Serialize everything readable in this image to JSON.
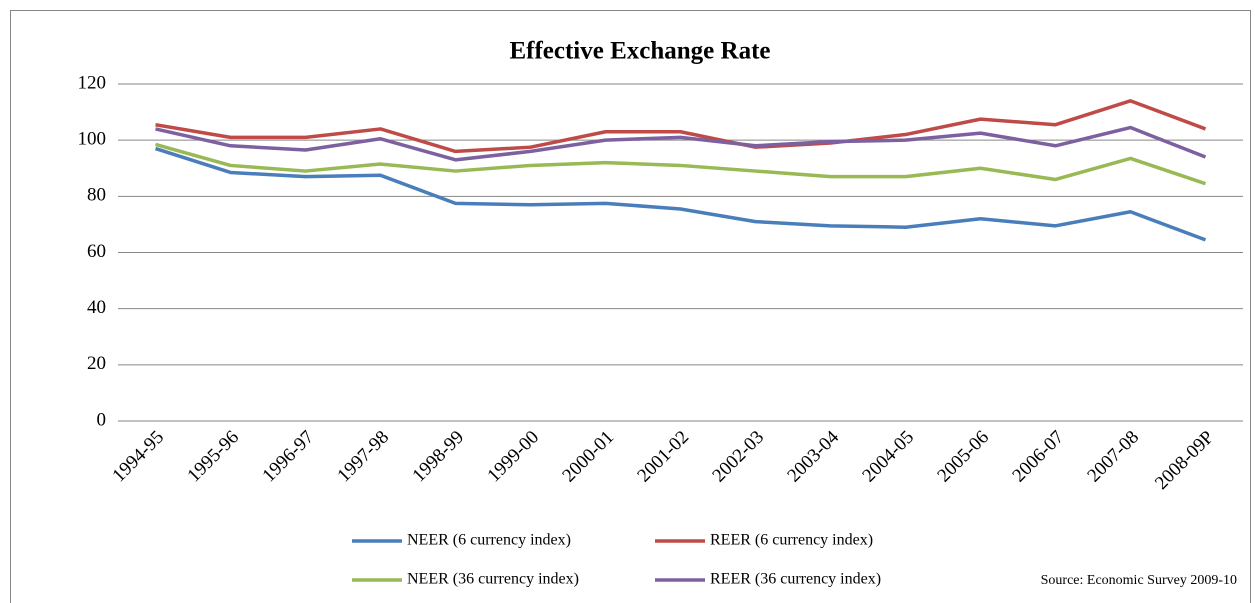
{
  "chart_data": {
    "type": "line",
    "title": "Effective Exchange Rate",
    "categories": [
      "1994-95",
      "1995-96",
      "1996-97",
      "1997-98",
      "1998-99",
      "1999-00",
      "2000-01",
      "2001-02",
      "2002-03",
      "2003-04",
      "2004-05",
      "2005-06",
      "2006-07",
      "2007-08",
      "2008-09P"
    ],
    "series": [
      {
        "name": "NEER (6 currency index)",
        "color": "#4a7ebb",
        "values": [
          97,
          88.5,
          87,
          87.5,
          77.5,
          77,
          77.5,
          75.5,
          71,
          69.5,
          69,
          72,
          69.5,
          74.5,
          64.5
        ]
      },
      {
        "name": "REER (6 currency index)",
        "color": "#be4b48",
        "values": [
          105.5,
          101,
          101,
          104,
          96,
          97.5,
          103,
          103,
          97.5,
          99,
          102,
          107.5,
          105.5,
          114,
          104
        ]
      },
      {
        "name": "NEER (36 currency index)",
        "color": "#98b954",
        "values": [
          98.5,
          91,
          89,
          91.5,
          89,
          91,
          92,
          91,
          89,
          87,
          87,
          90,
          86,
          93.5,
          84.5
        ]
      },
      {
        "name": "REER (36 currency index)",
        "color": "#7d60a0",
        "values": [
          104,
          98,
          96.5,
          100.5,
          93,
          96,
          100,
          101,
          98,
          99.5,
          100,
          102.5,
          98,
          104.5,
          94
        ]
      }
    ],
    "ylim": [
      0,
      120
    ],
    "yticks": [
      0,
      20,
      40,
      60,
      80,
      100,
      120
    ],
    "grid": true,
    "source": "Source: Economic Survey 2009-10"
  }
}
